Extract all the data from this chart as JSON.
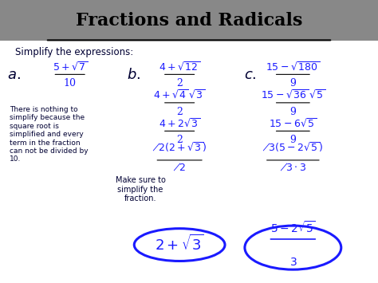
{
  "title": "Fractions and Radicals",
  "title_bg": "#888888",
  "title_color": "#000000",
  "subtitle": "Simplify the expressions:",
  "bg_color": "#ffffff",
  "text_color": "#000033",
  "blue_color": "#1a1aff",
  "note_a": "There is nothing to\nsimplify because the\nsquare root is\nsimplified and every\nterm in the fraction\ncan not be divided by\n10.",
  "note_b": "Make sure to\nsimplify the\nfraction."
}
